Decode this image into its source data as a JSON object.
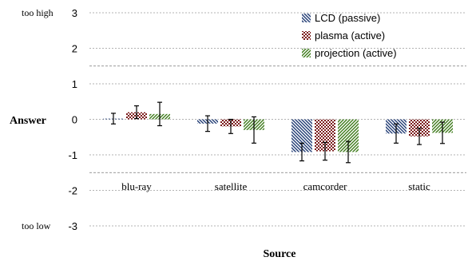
{
  "chart_data": {
    "type": "bar",
    "title": "",
    "xlabel": "Source",
    "ylabel": "Answer",
    "ylim": [
      -3,
      3
    ],
    "yticks": [
      3,
      2,
      1,
      0,
      -1,
      -2,
      -3
    ],
    "y_side_labels": {
      "top": "too high",
      "bottom": "too low"
    },
    "categories": [
      "blu-ray",
      "satellite",
      "camcorder",
      "static"
    ],
    "series": [
      {
        "name": "LCD (passive)",
        "values": [
          0.02,
          -0.12,
          -0.92,
          -0.4
        ],
        "errors": [
          0.15,
          0.22,
          0.25,
          0.27
        ],
        "color": "#1f3a73",
        "pattern": "diag-down"
      },
      {
        "name": "plasma (active)",
        "values": [
          0.2,
          -0.2,
          -0.9,
          -0.48
        ],
        "errors": [
          0.18,
          0.2,
          0.25,
          0.23
        ],
        "color": "#7b1c1c",
        "pattern": "check"
      },
      {
        "name": "projection (active)",
        "values": [
          0.15,
          -0.3,
          -0.92,
          -0.38
        ],
        "errors": [
          0.33,
          0.37,
          0.3,
          0.3
        ],
        "color": "#3d7a1a",
        "pattern": "diag-up"
      }
    ],
    "reference_lines": [
      1.5,
      -1.5
    ],
    "grid": true,
    "legend_position": "top-right"
  }
}
